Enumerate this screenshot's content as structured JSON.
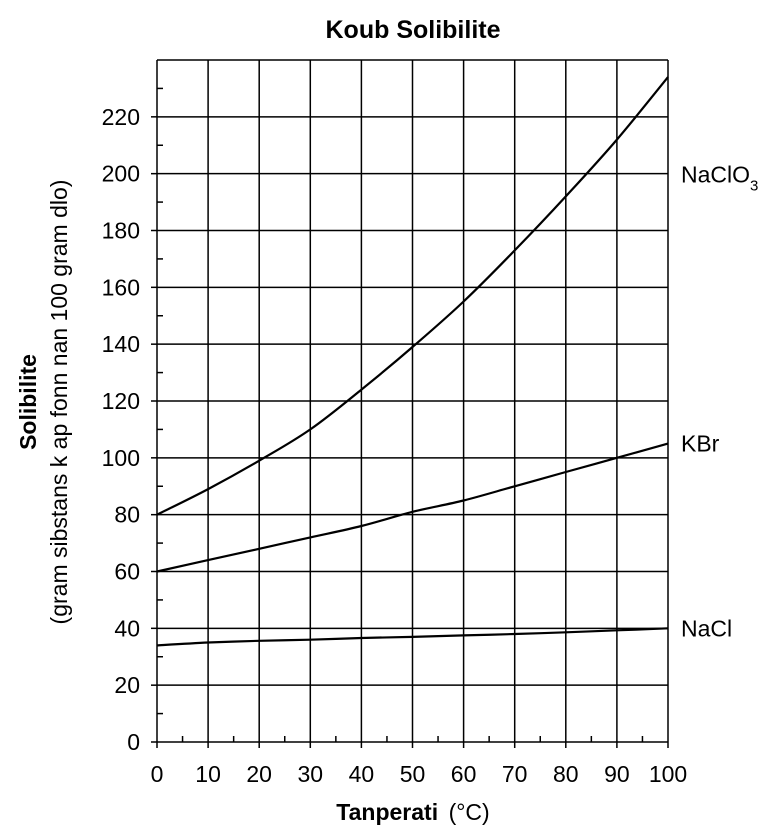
{
  "chart_data": {
    "type": "line",
    "title": "Koub Solibilite",
    "xlabel": {
      "bold": "Tanperati",
      "unit": "(°C)"
    },
    "ylabel": {
      "bold": "Solibilite",
      "sub": "(gram sibstans k ap fonn nan 100 gram dlo)"
    },
    "xlim": [
      0,
      100
    ],
    "ylim": [
      0,
      240
    ],
    "x_ticks": [
      0,
      10,
      20,
      30,
      40,
      50,
      60,
      70,
      80,
      90,
      100
    ],
    "y_ticks": [
      0,
      20,
      40,
      60,
      80,
      100,
      120,
      140,
      160,
      180,
      200,
      220
    ],
    "grid": true,
    "series": [
      {
        "name": "NaClO3",
        "label_main": "NaClO",
        "label_sub": "3",
        "x": [
          0,
          10,
          20,
          30,
          40,
          50,
          60,
          70,
          80,
          90,
          100
        ],
        "y": [
          80,
          89,
          99,
          110,
          124,
          139,
          155,
          173,
          192,
          212,
          234
        ]
      },
      {
        "name": "KBr",
        "label_main": "KBr",
        "label_sub": "",
        "x": [
          0,
          10,
          20,
          30,
          40,
          50,
          60,
          70,
          80,
          90,
          100
        ],
        "y": [
          60,
          64,
          68,
          72,
          76,
          81,
          85,
          90,
          95,
          100,
          105
        ]
      },
      {
        "name": "NaCl",
        "label_main": "NaCl",
        "label_sub": "",
        "x": [
          0,
          10,
          20,
          30,
          40,
          50,
          60,
          70,
          80,
          90,
          100
        ],
        "y": [
          34,
          35,
          35.6,
          36,
          36.6,
          37,
          37.5,
          38,
          38.6,
          39.3,
          40
        ]
      }
    ]
  }
}
